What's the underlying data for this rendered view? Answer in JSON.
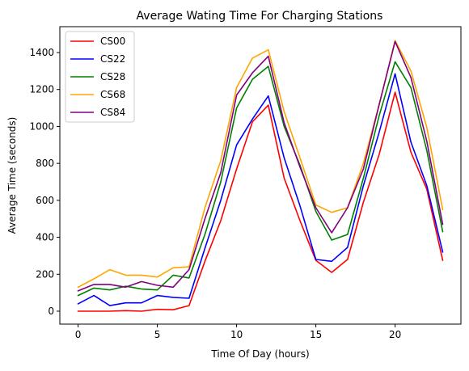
{
  "chart_data": {
    "type": "line",
    "title": "Average Wating Time For Charging Stations",
    "xlabel": "Time Of Day (hours)",
    "ylabel": "Average Time (seconds)",
    "xlim": [
      -1.15,
      24.15
    ],
    "ylim": [
      -70,
      1540
    ],
    "xticks": [
      0,
      5,
      10,
      15,
      20
    ],
    "yticks": [
      0,
      200,
      400,
      600,
      800,
      1000,
      1200,
      1400
    ],
    "grid": false,
    "legend_position": "top-left",
    "x": [
      0,
      1,
      2,
      3,
      4,
      5,
      6,
      7,
      8,
      9,
      10,
      11,
      12,
      13,
      14,
      15,
      16,
      17,
      18,
      19,
      20,
      21,
      22,
      23
    ],
    "series": [
      {
        "name": "CS00",
        "color": "#ff0000",
        "values": [
          0,
          0,
          0,
          3,
          0,
          10,
          8,
          30,
          270,
          490,
          770,
          1025,
          1115,
          720,
          490,
          275,
          210,
          280,
          590,
          850,
          1185,
          860,
          660,
          275
        ]
      },
      {
        "name": "CS22",
        "color": "#0000ff",
        "values": [
          40,
          85,
          30,
          45,
          45,
          85,
          75,
          70,
          340,
          600,
          900,
          1040,
          1165,
          830,
          570,
          280,
          270,
          345,
          680,
          970,
          1285,
          915,
          680,
          320
        ]
      },
      {
        "name": "CS28",
        "color": "#008000",
        "values": [
          85,
          125,
          115,
          135,
          120,
          115,
          195,
          180,
          415,
          700,
          1100,
          1255,
          1325,
          1000,
          790,
          540,
          385,
          415,
          720,
          1060,
          1350,
          1210,
          870,
          430
        ]
      },
      {
        "name": "CS68",
        "color": "#ffa500",
        "values": [
          130,
          175,
          225,
          195,
          195,
          185,
          235,
          240,
          560,
          815,
          1210,
          1370,
          1415,
          1080,
          830,
          575,
          535,
          560,
          800,
          1120,
          1465,
          1300,
          995,
          550
        ]
      },
      {
        "name": "CS84",
        "color": "#800080",
        "values": [
          110,
          145,
          145,
          130,
          160,
          140,
          130,
          225,
          500,
          750,
          1170,
          1290,
          1380,
          1020,
          780,
          560,
          425,
          560,
          770,
          1120,
          1460,
          1265,
          920,
          470
        ]
      }
    ]
  }
}
